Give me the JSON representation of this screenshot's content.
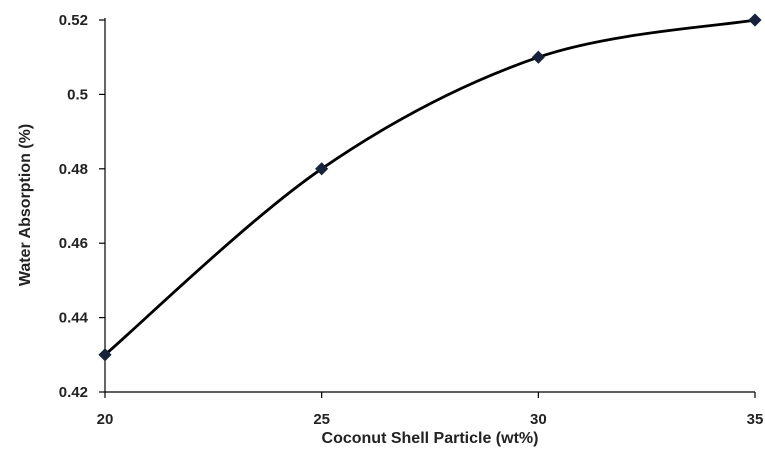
{
  "chart_data": {
    "type": "line",
    "title": "",
    "xlabel": "Coconut Shell Particle (wt%)",
    "ylabel": "Water Absorption (%)",
    "x": [
      20,
      25,
      30,
      35
    ],
    "series": [
      {
        "values": [
          0.43,
          0.48,
          0.51,
          0.52
        ]
      }
    ],
    "xlim": [
      20,
      35
    ],
    "ylim": [
      0.42,
      0.52
    ],
    "x_ticks": [
      20,
      25,
      30,
      35
    ],
    "x_tick_labels": [
      "20",
      "25",
      "30",
      "35"
    ],
    "y_ticks": [
      0.42,
      0.44,
      0.46,
      0.48,
      0.5,
      0.52
    ],
    "y_tick_labels": [
      "0.42",
      "0.44",
      "0.46",
      "0.48",
      "0.5",
      "0.52"
    ],
    "grid": false,
    "legend": "none",
    "smooth": true,
    "marker": "diamond",
    "colors": {
      "line": "#000000",
      "marker": "#17233a",
      "axis": "#000000",
      "text": "#222222"
    }
  }
}
